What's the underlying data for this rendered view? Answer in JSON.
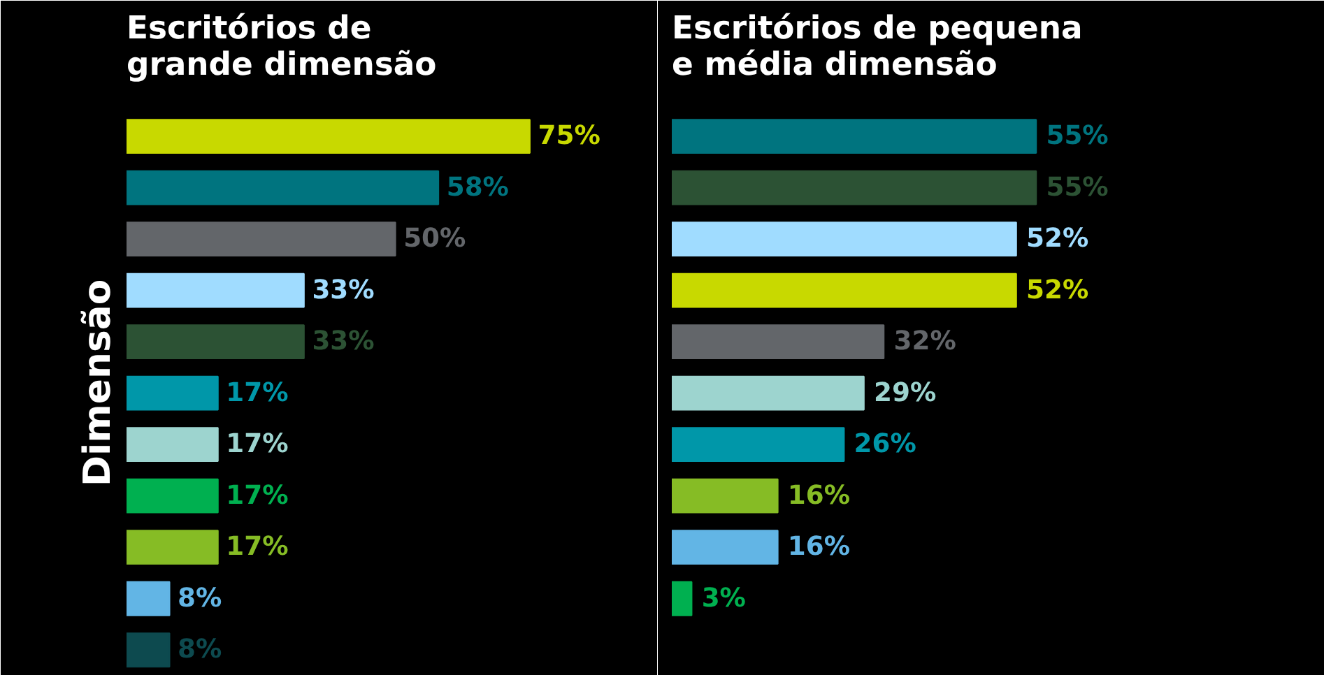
{
  "chart_data": [
    {
      "type": "bar",
      "orientation": "horizontal",
      "title": "Escritórios de\ngrande dimensão",
      "annotations": [
        "Dimensão"
      ],
      "tick_labels": false,
      "categories": [
        null,
        null,
        null,
        null,
        null,
        null,
        null,
        null,
        null,
        null,
        null
      ],
      "values": [
        75,
        58,
        50,
        33,
        33,
        17,
        17,
        17,
        17,
        8,
        8
      ],
      "value_labels": [
        "75%",
        "58%",
        "50%",
        "33%",
        "33%",
        "17%",
        "17%",
        "17%",
        "17%",
        "8%",
        "8%"
      ],
      "colors": [
        "#c8d900",
        "#00747f",
        "#63666a",
        "#a0dcff",
        "#2c5234",
        "#0097a9",
        "#9dd4cf",
        "#00b050",
        "#86bc25",
        "#62b5e5",
        "#0d4a4f"
      ]
    },
    {
      "type": "bar",
      "orientation": "horizontal",
      "title": "Escritórios de pequena\ne média dimensão",
      "tick_labels": false,
      "categories": [
        null,
        null,
        null,
        null,
        null,
        null,
        null,
        null,
        null,
        null
      ],
      "values": [
        55,
        55,
        52,
        52,
        32,
        29,
        26,
        16,
        16,
        3
      ],
      "value_labels": [
        "55%",
        "55%",
        "52%",
        "52%",
        "32%",
        "29%",
        "26%",
        "16%",
        "16%",
        "3%"
      ],
      "colors": [
        "#00747f",
        "#2c5234",
        "#a0dcff",
        "#c8d900",
        "#63666a",
        "#9dd4cf",
        "#0097a9",
        "#86bc25",
        "#62b5e5",
        "#00b050"
      ]
    }
  ]
}
